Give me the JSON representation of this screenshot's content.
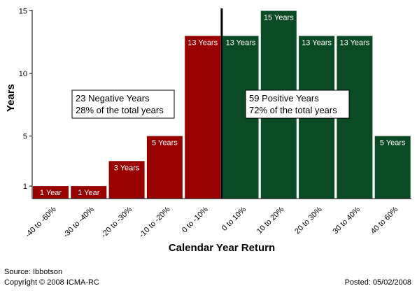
{
  "chart_data": {
    "type": "bar",
    "categories": [
      "-40 to -60%",
      "-30 to -40%",
      "-20 to -30%",
      "-10 to -20%",
      "0 to -10%",
      "0 to 10%",
      "10 to 20%",
      "20 to 30%",
      "30 to 40%",
      "40 to 60%"
    ],
    "values": [
      1,
      1,
      3,
      5,
      13,
      13,
      15,
      13,
      13,
      5
    ],
    "bar_labels": [
      "1 Year",
      "1 Year",
      "3 Years",
      "5 Years",
      "13 Years",
      "13 Years",
      "15 Years",
      "13 Years",
      "13 Years",
      "5 Years"
    ],
    "xlabel": "Calendar Year Return",
    "ylabel": "Years",
    "ylim": [
      0,
      15
    ],
    "yticks": [
      1,
      5,
      10,
      15
    ],
    "grid": false,
    "colors": {
      "negative": "#990000",
      "positive": "#0a4a24",
      "divider": "#000000"
    },
    "annotations": {
      "negative": [
        "23 Negative Years",
        "28% of the total years"
      ],
      "positive": [
        "59 Positive Years",
        "72% of the total years"
      ]
    }
  },
  "footer": {
    "source": "Source: Ibbotson",
    "copyright": "Copyright © 2008 ICMA-RC",
    "posted": "Posted: 05/02/2008"
  }
}
